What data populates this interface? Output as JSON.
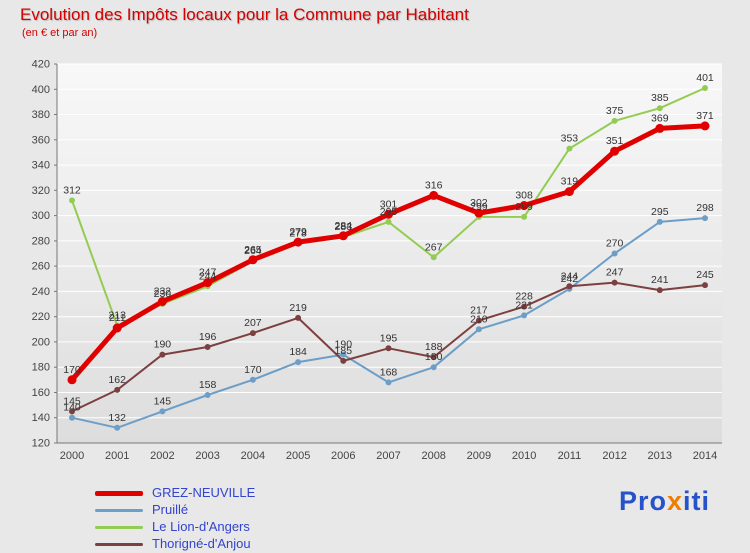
{
  "chart_data": {
    "type": "line",
    "title": "Evolution des Impôts locaux pour la Commune par Habitant",
    "subtitle": "(en € et par an)",
    "xlabel": "",
    "ylabel": "",
    "x": [
      2000,
      2001,
      2002,
      2003,
      2004,
      2005,
      2006,
      2007,
      2008,
      2009,
      2010,
      2011,
      2012,
      2013,
      2014
    ],
    "ylim": [
      120,
      420
    ],
    "ytick_step": 20,
    "grid": true,
    "legend_position": "bottom-left",
    "series": [
      {
        "name": "GREZ-NEUVILLE",
        "color": "#e00000",
        "width": 5,
        "values": [
          170,
          211,
          232,
          247,
          265,
          279,
          284,
          301,
          316,
          302,
          308,
          319,
          351,
          369,
          371
        ]
      },
      {
        "name": "Pruillé",
        "color": "#6d9ec7",
        "width": 2,
        "values": [
          140,
          132,
          145,
          158,
          170,
          184,
          190,
          168,
          180,
          210,
          221,
          242,
          270,
          295,
          298
        ]
      },
      {
        "name": "Le Lion-d'Angers",
        "color": "#93cc52",
        "width": 2,
        "values": [
          312,
          213,
          230,
          244,
          264,
          278,
          283,
          295,
          267,
          299,
          299,
          353,
          375,
          385,
          401
        ]
      },
      {
        "name": "Thorigné-d'Anjou",
        "color": "#7d4040",
        "width": 2,
        "values": [
          145,
          162,
          190,
          196,
          207,
          219,
          185,
          195,
          188,
          217,
          228,
          244,
          247,
          241,
          245
        ]
      }
    ]
  },
  "colors": {
    "background": "#e8e8e8",
    "title_text": "#d40000",
    "legend_text": "#3344cc",
    "logo_blue": "#2653c9",
    "logo_orange": "#f07d00"
  },
  "logo": {
    "part1": "Pro",
    "part2": "x",
    "part3": "iti"
  }
}
